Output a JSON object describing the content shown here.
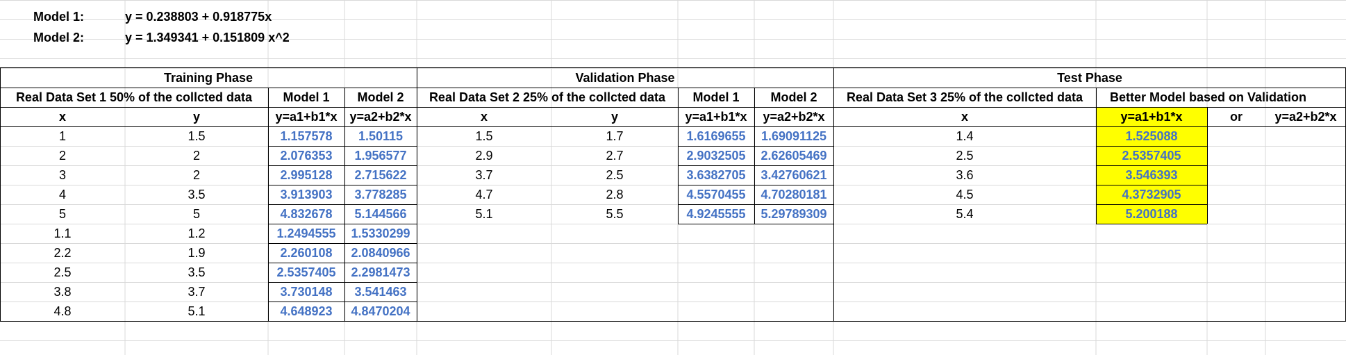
{
  "models": [
    {
      "label": "Model 1:",
      "equation": "y = 0.238803 + 0.918775x"
    },
    {
      "label": "Model 2:",
      "equation": "y = 1.349341 + 0.151809 x^2"
    }
  ],
  "training": {
    "phase_title": "Training Phase",
    "dataset_label": "Real Data Set 1 50% of the collcted data",
    "model1_label": "Model 1",
    "model2_label": "Model 2",
    "col_x": "x",
    "col_y": "y",
    "col_m1": "y=a1+b1*x",
    "col_m2": "y=a2+b2*x",
    "rows": [
      {
        "x": "1",
        "y": "1.5",
        "m1": "1.157578",
        "m2": "1.50115"
      },
      {
        "x": "2",
        "y": "2",
        "m1": "2.076353",
        "m2": "1.956577"
      },
      {
        "x": "3",
        "y": "2",
        "m1": "2.995128",
        "m2": "2.715622"
      },
      {
        "x": "4",
        "y": "3.5",
        "m1": "3.913903",
        "m2": "3.778285"
      },
      {
        "x": "5",
        "y": "5",
        "m1": "4.832678",
        "m2": "5.144566"
      },
      {
        "x": "1.1",
        "y": "1.2",
        "m1": "1.2494555",
        "m2": "1.5330299"
      },
      {
        "x": "2.2",
        "y": "1.9",
        "m1": "2.260108",
        "m2": "2.0840966"
      },
      {
        "x": "2.5",
        "y": "3.5",
        "m1": "2.5357405",
        "m2": "2.2981473"
      },
      {
        "x": "3.8",
        "y": "3.7",
        "m1": "3.730148",
        "m2": "3.541463"
      },
      {
        "x": "4.8",
        "y": "5.1",
        "m1": "4.648923",
        "m2": "4.8470204"
      }
    ]
  },
  "validation": {
    "phase_title": "Validation Phase",
    "dataset_label": "Real Data Set 2 25% of the collcted data",
    "model1_label": "Model 1",
    "model2_label": "Model 2",
    "col_x": "x",
    "col_y": "y",
    "col_m1": "y=a1+b1*x",
    "col_m2": "y=a2+b2*x",
    "rows": [
      {
        "x": "1.5",
        "y": "1.7",
        "m1": "1.6169655",
        "m2": "1.69091125"
      },
      {
        "x": "2.9",
        "y": "2.7",
        "m1": "2.9032505",
        "m2": "2.62605469"
      },
      {
        "x": "3.7",
        "y": "2.5",
        "m1": "3.6382705",
        "m2": "3.42760621"
      },
      {
        "x": "4.7",
        "y": "2.8",
        "m1": "4.5570455",
        "m2": "4.70280181"
      },
      {
        "x": "5.1",
        "y": "5.5",
        "m1": "4.9245555",
        "m2": "5.29789309"
      }
    ]
  },
  "test": {
    "phase_title": "Test Phase",
    "dataset_label": "Real Data Set 3 25% of the collcted data",
    "better_label": "Better Model based on Validation",
    "col_x": "x",
    "col_choice1": "y=a1+b1*x",
    "col_or": "or",
    "col_choice2": "y=a2+b2*x",
    "rows": [
      {
        "x": "1.4",
        "pred": "1.525088"
      },
      {
        "x": "2.5",
        "pred": "2.5357405"
      },
      {
        "x": "3.6",
        "pred": "3.546393"
      },
      {
        "x": "4.5",
        "pred": "4.3732905"
      },
      {
        "x": "5.4",
        "pred": "5.200188"
      }
    ]
  },
  "colors": {
    "highlight": "#ffff00",
    "computed_text": "#4472c4",
    "gridline": "#d9d9d9"
  }
}
